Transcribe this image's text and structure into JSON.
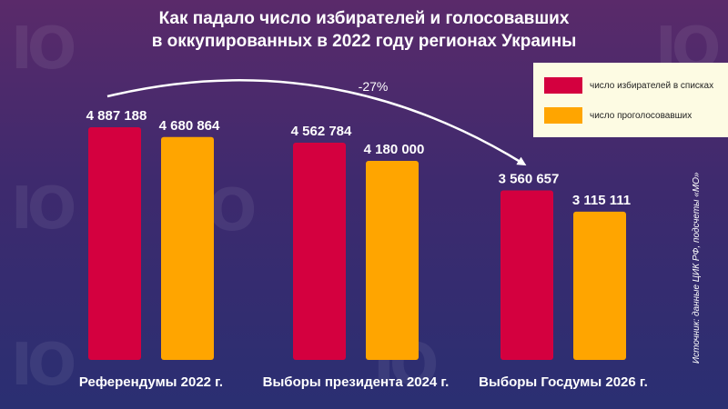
{
  "title_lines": [
    "Как падало число избирателей и голосовавших",
    "в оккупированных в 2022 году регионах Украины"
  ],
  "source": "Источник: данные ЦИК РФ, подсчеты «МО»",
  "colors": {
    "voters": "#d4003f",
    "voted": "#ffa500",
    "background": "#3e2a6e"
  },
  "chart_data": {
    "type": "bar",
    "categories": [
      "Референдумы 2022 г.",
      "Выборы президента 2024 г.",
      "Выборы Госдумы 2026 г."
    ],
    "series": [
      {
        "name": "число избирателей в списках",
        "values": [
          4887188,
          4562784,
          3560657
        ],
        "labels": [
          "4 887 188",
          "4 562 784",
          "3 560 657"
        ]
      },
      {
        "name": "число проголосовавших",
        "values": [
          4680864,
          4180000,
          3115111
        ],
        "labels": [
          "4 680 864",
          "4 180 000",
          "3 115 111"
        ]
      }
    ],
    "annotation": "-27%",
    "legend_position": "top-right"
  }
}
